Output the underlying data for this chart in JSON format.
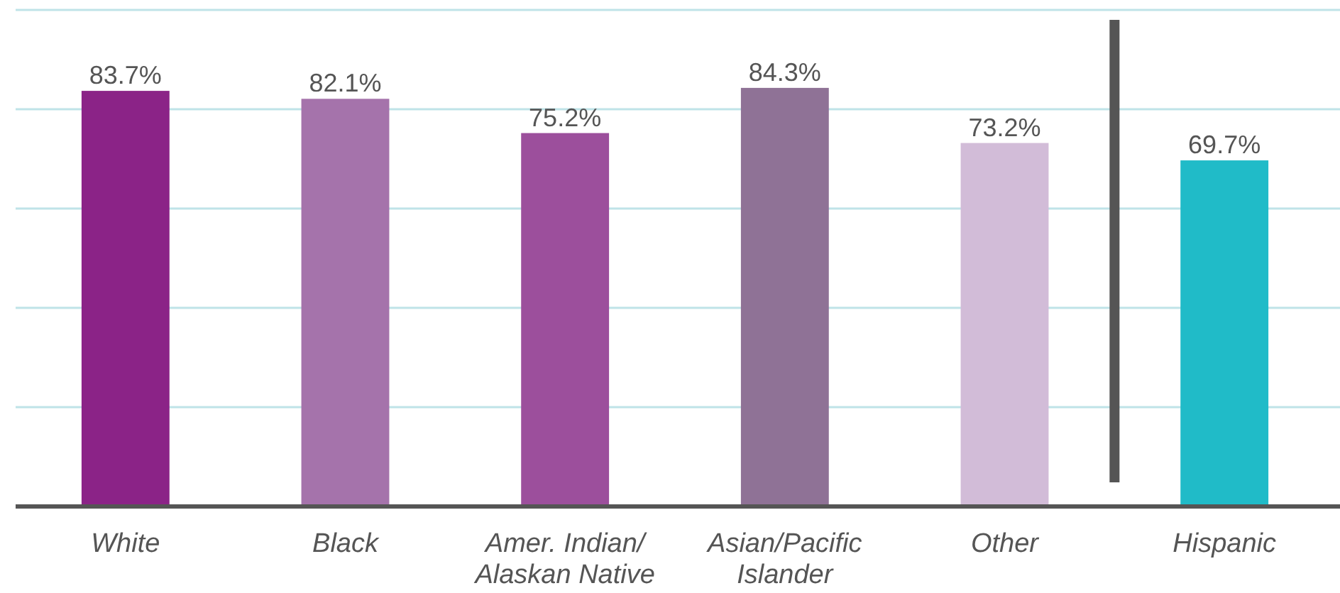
{
  "chart_data": {
    "type": "bar",
    "categories": [
      "White",
      "Black",
      "Amer. Indian/ Alaskan Native",
      "Asian/Pacific Islander",
      "Other",
      "Hispanic"
    ],
    "values": [
      83.7,
      82.1,
      75.2,
      84.3,
      73.2,
      69.7
    ],
    "colors": [
      "#8b2387",
      "#a573ab",
      "#9c4f9c",
      "#8f7296",
      "#d2bcd8",
      "#20bbc8"
    ],
    "value_labels": [
      "83.7%",
      "82.1%",
      "75.2%",
      "84.3%",
      "73.2%",
      "69.7%"
    ],
    "ylim": [
      0,
      100
    ],
    "yticks": [
      {
        "value": 0,
        "label": null
      },
      {
        "value": 20,
        "label": null
      },
      {
        "value": 40,
        "label": null
      },
      {
        "value": 60,
        "label": null
      },
      {
        "value": 80,
        "label": null
      },
      {
        "value": 100,
        "label": null
      }
    ],
    "grid": "y",
    "tick_labels": "x"
  }
}
